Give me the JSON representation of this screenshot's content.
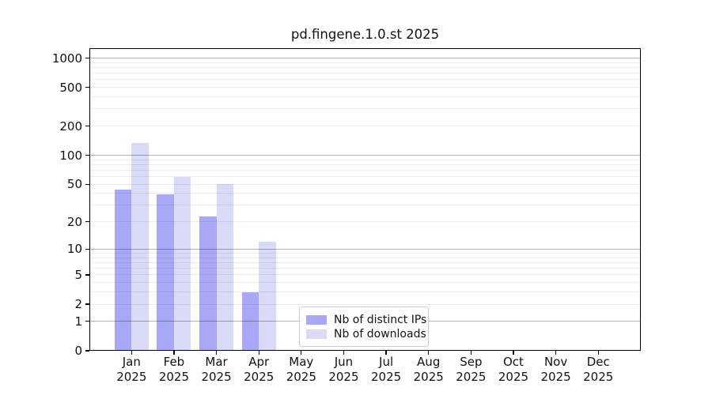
{
  "chart_data": {
    "type": "bar",
    "title": "pd.fingene.1.0.st 2025",
    "categories": [
      "Jan",
      "Feb",
      "Mar",
      "Apr",
      "May",
      "Jun",
      "Jul",
      "Aug",
      "Sep",
      "Oct",
      "Nov",
      "Dec"
    ],
    "year_label": "2025",
    "series": [
      {
        "name": "Nb of distinct IPs",
        "color": "#a8a8f6",
        "values": [
          44,
          39,
          23,
          3,
          0,
          0,
          0,
          0,
          0,
          0,
          0,
          0
        ]
      },
      {
        "name": "Nb of downloads",
        "color": "#d9d9f8",
        "values": [
          135,
          60,
          50,
          12,
          0,
          0,
          0,
          0,
          0,
          0,
          0,
          0
        ]
      }
    ],
    "y_ticks": [
      0,
      1,
      2,
      5,
      10,
      20,
      50,
      100,
      200,
      500,
      1000
    ],
    "y_scale": "log10(value+1)",
    "ylim": [
      0,
      1260
    ],
    "grid": "horizontal, minor and major",
    "legend_position": "lower center-right inside plot"
  }
}
